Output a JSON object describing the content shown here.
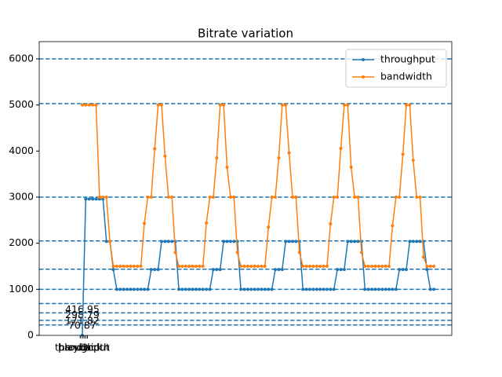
{
  "chart_data": {
    "type": "line",
    "title": "Bitrate variation",
    "x": [
      0,
      1,
      2,
      3,
      4,
      5,
      6,
      7,
      8,
      9,
      10,
      11,
      12,
      13,
      14,
      15,
      16,
      17,
      18,
      19,
      20,
      21,
      22,
      23,
      24,
      25,
      26,
      27,
      28,
      29,
      30,
      31,
      32,
      33,
      34,
      35,
      36,
      37,
      38,
      39,
      40,
      41,
      42,
      43,
      44,
      45,
      46,
      47,
      48,
      49,
      50,
      51,
      52,
      53,
      54,
      55,
      56,
      57,
      58,
      59,
      60,
      61,
      62,
      63,
      64,
      65,
      66,
      67,
      68,
      69,
      70,
      71,
      72,
      73,
      74,
      75,
      76,
      77,
      78,
      79,
      80,
      81,
      82,
      83,
      84,
      85,
      86,
      87,
      88,
      89,
      90,
      91,
      92,
      93,
      94,
      95,
      96,
      97,
      98,
      99,
      100,
      101,
      102
    ],
    "series": [
      {
        "name": "throughput",
        "color": "#1f77b4",
        "values": [
          0,
          2960,
          2960,
          2960,
          2960,
          2960,
          2960,
          2040,
          2040,
          1430,
          1000,
          1000,
          1000,
          1000,
          1000,
          1000,
          1000,
          1000,
          1000,
          1000,
          1430,
          1430,
          1430,
          2040,
          2040,
          2040,
          2040,
          2040,
          1000,
          1000,
          1000,
          1000,
          1000,
          1000,
          1000,
          1000,
          1000,
          1000,
          1430,
          1430,
          1430,
          2040,
          2040,
          2040,
          2040,
          2040,
          1000,
          1000,
          1000,
          1000,
          1000,
          1000,
          1000,
          1000,
          1000,
          1000,
          1430,
          1430,
          1430,
          2040,
          2040,
          2040,
          2040,
          2040,
          1000,
          1000,
          1000,
          1000,
          1000,
          1000,
          1000,
          1000,
          1000,
          1000,
          1430,
          1430,
          1430,
          2040,
          2040,
          2040,
          2040,
          2040,
          1000,
          1000,
          1000,
          1000,
          1000,
          1000,
          1000,
          1000,
          1000,
          1000,
          1430,
          1430,
          1430,
          2040,
          2040,
          2040,
          2040,
          2040,
          1430,
          1000,
          1000
        ]
      },
      {
        "name": "bandwidth",
        "color": "#ff7f0e",
        "values": [
          5000,
          5000,
          5000,
          5000,
          5000,
          3000,
          3000,
          3000,
          2040,
          1500,
          1500,
          1500,
          1500,
          1500,
          1500,
          1500,
          1500,
          1500,
          2430,
          3000,
          3000,
          4050,
          5000,
          5000,
          3890,
          3000,
          3000,
          1800,
          1500,
          1500,
          1500,
          1500,
          1500,
          1500,
          1500,
          1500,
          2440,
          3000,
          3000,
          3850,
          5000,
          5000,
          3650,
          3000,
          3000,
          1800,
          1500,
          1500,
          1500,
          1500,
          1500,
          1500,
          1500,
          1500,
          2350,
          3000,
          3000,
          3850,
          5000,
          5000,
          3960,
          3000,
          3000,
          1800,
          1500,
          1500,
          1500,
          1500,
          1500,
          1500,
          1500,
          1500,
          2420,
          3000,
          3000,
          4060,
          5000,
          5000,
          3650,
          3000,
          3000,
          1800,
          1500,
          1500,
          1500,
          1500,
          1500,
          1500,
          1500,
          1500,
          2380,
          3000,
          3000,
          3930,
          5000,
          5000,
          3800,
          3000,
          3000,
          1700,
          1500,
          1500,
          1500
        ]
      }
    ],
    "hlines": [
      6000,
      5030,
      3000,
      2050,
      1436,
      1000,
      690,
      487,
      325,
      225
    ],
    "hline_color": "#1f77b4",
    "annotations": [
      {
        "text": "416.95",
        "value": 416.95
      },
      {
        "text": "298.79",
        "value": 298.79
      },
      {
        "text": "171.82",
        "value": 171.82
      },
      {
        "text": "70.87",
        "value": 70.87
      }
    ],
    "xlim": [
      -12.5,
      107.2
    ],
    "ylim": [
      0,
      6375
    ],
    "xticks": [
      {
        "value": -0.6,
        "label": "playback"
      },
      {
        "value": 0,
        "label": "throughput"
      },
      {
        "value": 0.5,
        "label": "bandwidth"
      },
      {
        "value": 1,
        "label": "L"
      },
      {
        "value": 1.5,
        "label": "3c"
      }
    ],
    "yticks": [
      0,
      1000,
      2000,
      3000,
      4000,
      5000,
      6000
    ],
    "legend": "upper right"
  }
}
